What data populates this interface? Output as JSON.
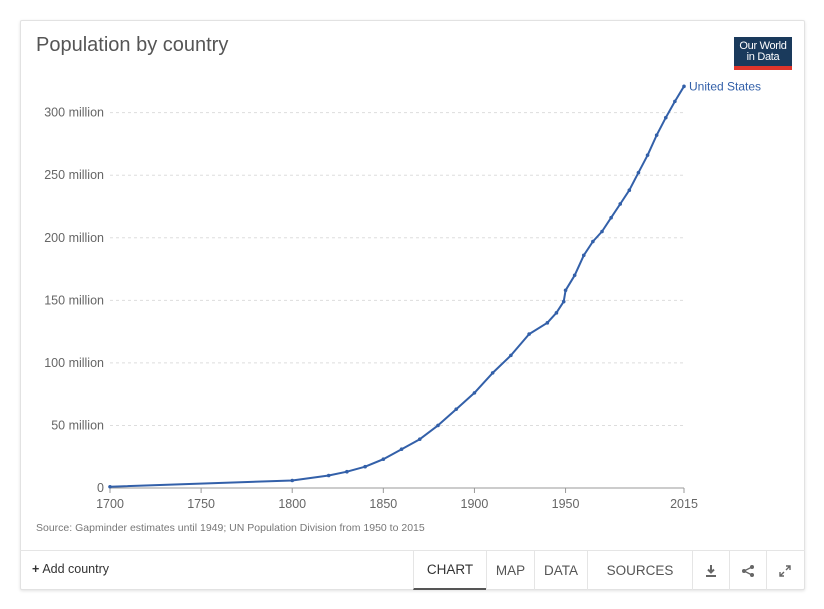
{
  "header": {
    "title": "Population by country"
  },
  "logo": {
    "line1": "Our World",
    "line2": "in Data"
  },
  "source": "Source: Gapminder estimates until 1949; UN Population Division from 1950 to 2015",
  "footer": {
    "add_country": "Add country",
    "tabs": [
      "CHART",
      "MAP",
      "DATA",
      "SOURCES"
    ],
    "active_tab": "CHART",
    "icons": [
      "download-icon",
      "share-icon",
      "fullscreen-icon"
    ]
  },
  "colors": {
    "series": "#3360a9",
    "grid": "#dddddd",
    "title": "#555555"
  },
  "chart_data": {
    "type": "line",
    "title": "Population by country",
    "xlim": [
      1700,
      2015
    ],
    "ylim": [
      0,
      320000000
    ],
    "x_ticks": [
      1700,
      1750,
      1800,
      1850,
      1900,
      1950,
      2015
    ],
    "y_ticks": [
      0,
      50000000,
      100000000,
      150000000,
      200000000,
      250000000,
      300000000
    ],
    "y_tick_labels": [
      "0",
      "50 million",
      "100 million",
      "150 million",
      "200 million",
      "250 million",
      "300 million"
    ],
    "grid": "horizontal-dashed",
    "series": [
      {
        "name": "United States",
        "x": [
          1700,
          1800,
          1820,
          1830,
          1840,
          1850,
          1860,
          1870,
          1880,
          1890,
          1900,
          1910,
          1920,
          1930,
          1940,
          1945,
          1949,
          1950,
          1955,
          1960,
          1965,
          1970,
          1975,
          1980,
          1985,
          1990,
          1995,
          2000,
          2005,
          2010,
          2015
        ],
        "y": [
          1000000,
          6000000,
          10000000,
          13000000,
          17000000,
          23000000,
          31000000,
          39000000,
          50000000,
          63000000,
          76000000,
          92000000,
          106000000,
          123000000,
          132000000,
          140000000,
          149000000,
          158000000,
          170000000,
          186000000,
          197000000,
          205000000,
          216000000,
          227000000,
          238000000,
          252000000,
          266000000,
          282000000,
          296000000,
          309000000,
          321000000
        ]
      }
    ]
  }
}
